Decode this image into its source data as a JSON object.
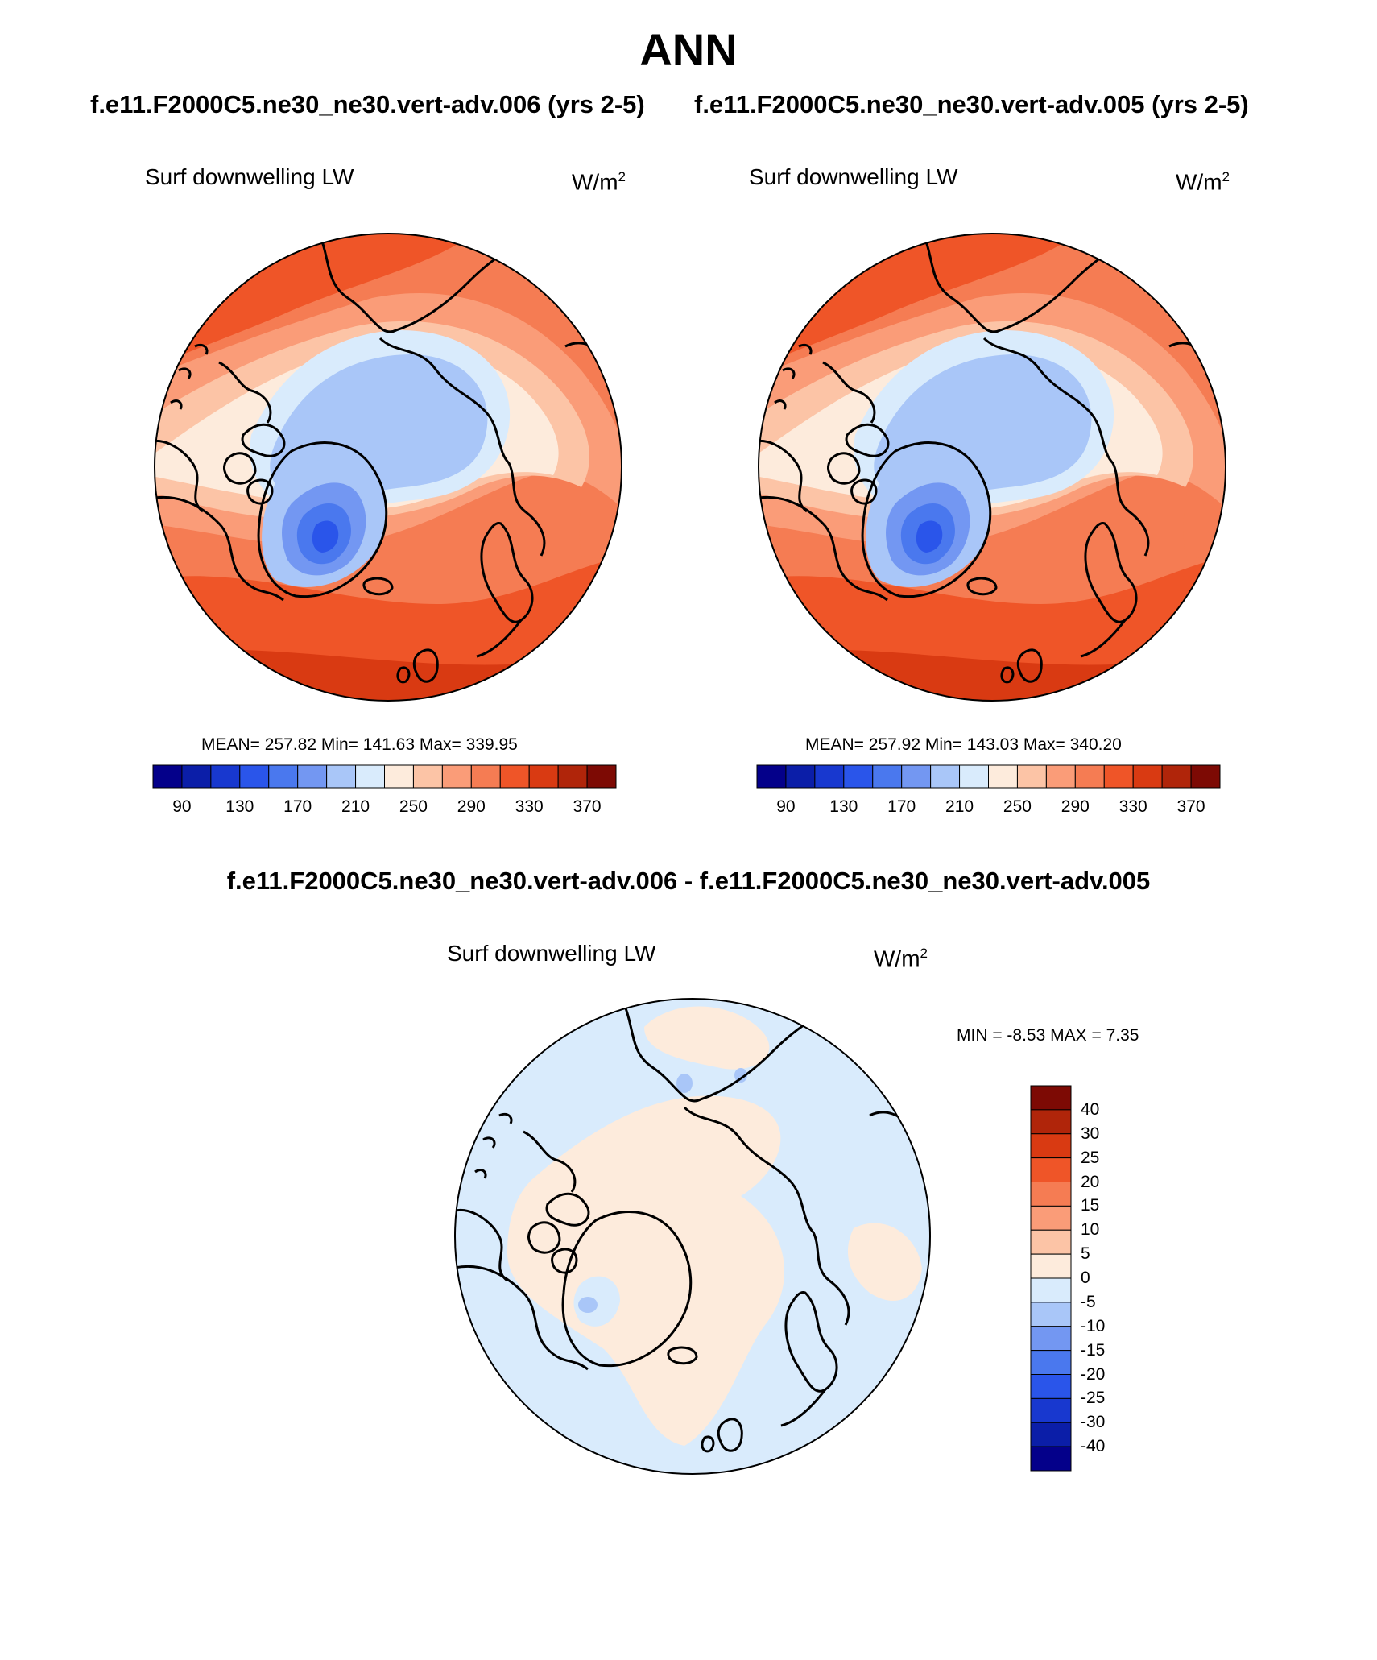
{
  "page": {
    "title": "ANN",
    "case_titles": [
      "f.e11.F2000C5.ne30_ne30.vert-adv.006 (yrs 2-5)",
      "f.e11.F2000C5.ne30_ne30.vert-adv.005 (yrs 2-5)"
    ],
    "diff_title": "f.e11.F2000C5.ne30_ne30.vert-adv.006 - f.e11.F2000C5.ne30_ne30.vert-adv.005"
  },
  "panels": [
    {
      "variable": "Surf downwelling LW",
      "units_base": "W/m",
      "units_exp": "2",
      "stats": "MEAN= 257.82  Min= 141.63  Max= 339.95",
      "mean": 257.82,
      "min": 141.63,
      "max": 339.95
    },
    {
      "variable": "Surf downwelling LW",
      "units_base": "W/m",
      "units_exp": "2",
      "stats": "MEAN= 257.92  Min= 143.03  Max= 340.20",
      "mean": 257.92,
      "min": 143.03,
      "max": 340.2
    }
  ],
  "diff_panel": {
    "variable": "Surf downwelling LW",
    "units_base": "W/m",
    "units_exp": "2",
    "stats": "MIN =  -8.53 MAX =   7.35",
    "min": -8.53,
    "max": 7.35
  },
  "colorbar_main": {
    "colors": [
      "#04008a",
      "#0b1ea8",
      "#1838cf",
      "#2a55ea",
      "#4a78ee",
      "#7397f2",
      "#a9c6f8",
      "#d9ebfc",
      "#fdebdc",
      "#fcc4a6",
      "#fa9c78",
      "#f57c53",
      "#ef5528",
      "#d93a12",
      "#b0250a",
      "#7d0a04"
    ],
    "labels": [
      "90",
      "130",
      "170",
      "210",
      "250",
      "290",
      "330",
      "370"
    ]
  },
  "colorbar_diff": {
    "colors": [
      "#04008a",
      "#0b1ea8",
      "#1838cf",
      "#2a55ea",
      "#4a78ee",
      "#7397f2",
      "#a9c6f8",
      "#d9ebfc",
      "#fdebdc",
      "#fcc4a6",
      "#fa9c78",
      "#f57c53",
      "#ef5528",
      "#d93a12",
      "#b0250a",
      "#7d0a04"
    ],
    "labels": [
      "40",
      "30",
      "25",
      "20",
      "15",
      "10",
      "5",
      "0",
      "-5",
      "-10",
      "-15",
      "-20",
      "-25",
      "-30",
      "-40"
    ]
  }
}
